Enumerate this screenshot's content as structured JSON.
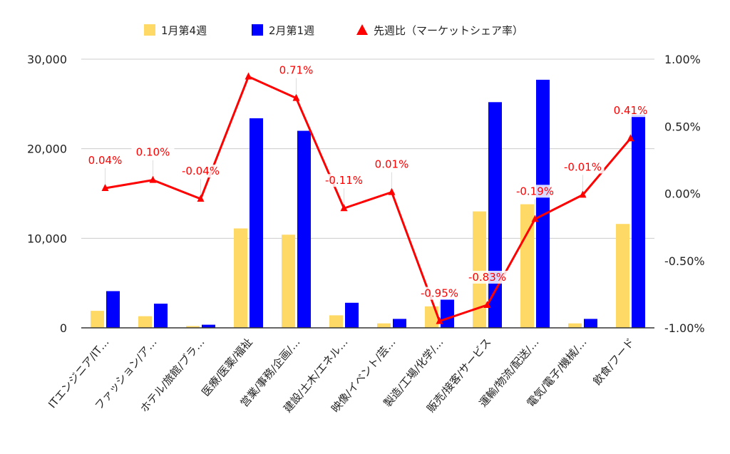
{
  "chart_data": {
    "type": "bar",
    "title": "",
    "xlabel": "",
    "ylabel": "",
    "categories": [
      "ITエンジニア/IT…",
      "ファッション/ア…",
      "ホテル/旅館/ブラ…",
      "医療/医薬/福祉",
      "営業/事務/企画/…",
      "建設/土木/エネル…",
      "映像/イベント/芸…",
      "製造/工場/化学/…",
      "販売/接客/サービス",
      "運輸/物流/配送/…",
      "電気/電子/機械/…",
      "飲食/フード"
    ],
    "series": [
      {
        "name": "1月第4週",
        "type": "bar",
        "axis": "left",
        "color": "#ffd966",
        "values": [
          1900,
          1300,
          200,
          11100,
          10400,
          1400,
          500,
          2400,
          13000,
          13800,
          500,
          11600
        ]
      },
      {
        "name": "2月第1週",
        "type": "bar",
        "axis": "left",
        "color": "#0000ff",
        "values": [
          4100,
          2700,
          350,
          23400,
          22000,
          2800,
          1000,
          3200,
          25200,
          27700,
          1000,
          23800
        ]
      },
      {
        "name": "先週比（マーケットシェア率）",
        "type": "line",
        "axis": "right",
        "color": "#ff0000",
        "values": [
          0.04,
          0.1,
          -0.04,
          0.87,
          0.71,
          -0.11,
          0.01,
          -0.95,
          -0.83,
          -0.19,
          -0.01,
          0.41
        ],
        "labels": [
          "0.04%",
          "0.10%",
          "-0.04%",
          "",
          "0.71%",
          "-0.11%",
          "0.01%",
          "-0.95%",
          "-0.83%",
          "-0.19%",
          "-0.01%",
          "0.41%"
        ]
      }
    ],
    "ylim_left": [
      0,
      30000
    ],
    "yticks_left": [
      "0",
      "10,000",
      "20,000",
      "30,000"
    ],
    "ylim_right": [
      -1.0,
      1.0
    ],
    "yticks_right": [
      "-1.00%",
      "-0.50%",
      "0.00%",
      "0.50%",
      "1.00%"
    ],
    "grid": true,
    "legend_position": "top"
  }
}
